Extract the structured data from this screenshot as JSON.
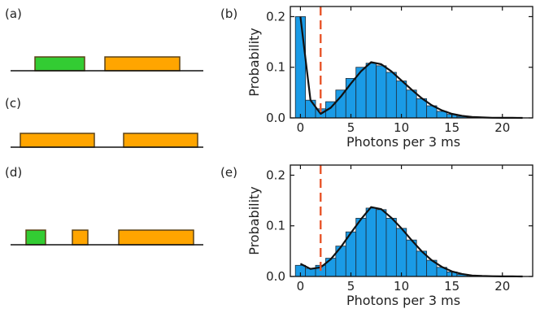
{
  "panel_labels": [
    "(a)",
    "(b)",
    "(c)",
    "(d)",
    "(e)"
  ],
  "colors": {
    "bar_fill": "#1a9be6",
    "bar_edge": "#1d2c3a",
    "fit_line": "#111111",
    "threshold_line": "#e8552a",
    "pulse_green": "#33cc33",
    "pulse_orange": "#ffa500",
    "pulse_edge": "#5c4318"
  },
  "sequences": [
    {
      "panel": "(a)",
      "pulses": [
        {
          "kind": "green",
          "start": 43,
          "end": 104,
          "height": 17
        },
        {
          "kind": "orange",
          "start": 129,
          "end": 221,
          "height": 17
        }
      ]
    },
    {
      "panel": "(c)",
      "pulses": [
        {
          "kind": "orange",
          "start": 25,
          "end": 116,
          "height": 17
        },
        {
          "kind": "orange",
          "start": 152,
          "end": 243,
          "height": 17
        }
      ]
    },
    {
      "panel": "(d)",
      "pulses": [
        {
          "kind": "green",
          "start": 32,
          "end": 56,
          "height": 18
        },
        {
          "kind": "orange",
          "start": 89,
          "end": 108,
          "height": 18
        },
        {
          "kind": "orange",
          "start": 146,
          "end": 238,
          "height": 18
        }
      ]
    }
  ],
  "chart_data": [
    {
      "panel": "(b)",
      "type": "bar",
      "xlabel": "Photons per 3 ms",
      "ylabel": "Probability",
      "xlim": [
        -1,
        23
      ],
      "ylim": [
        0,
        0.22
      ],
      "xticks": [
        0,
        5,
        10,
        15,
        20
      ],
      "yticks": [
        0.0,
        0.1,
        0.2
      ],
      "ytick_labels": [
        "0.0",
        "0.1",
        "0.2"
      ],
      "threshold": 2,
      "x": [
        0,
        1,
        2,
        3,
        4,
        5,
        6,
        7,
        8,
        9,
        10,
        11,
        12,
        13,
        14,
        15,
        16,
        17,
        18,
        19,
        20,
        21,
        22
      ],
      "values": [
        0.2,
        0.035,
        0.018,
        0.032,
        0.055,
        0.078,
        0.1,
        0.108,
        0.103,
        0.09,
        0.073,
        0.055,
        0.038,
        0.024,
        0.013,
        0.007,
        0.003,
        0.0015,
        0.0005,
        0.0002,
        0.0001,
        0,
        0
      ],
      "fit": [
        [
          0,
          0.2
        ],
        [
          1,
          0.035
        ],
        [
          2,
          0.008
        ],
        [
          3,
          0.02
        ],
        [
          4,
          0.042
        ],
        [
          5,
          0.068
        ],
        [
          6,
          0.092
        ],
        [
          7,
          0.11
        ],
        [
          8,
          0.106
        ],
        [
          9,
          0.092
        ],
        [
          10,
          0.074
        ],
        [
          11,
          0.056
        ],
        [
          12,
          0.039
        ],
        [
          13,
          0.025
        ],
        [
          14,
          0.015
        ],
        [
          15,
          0.008
        ],
        [
          16,
          0.004
        ],
        [
          17,
          0.002
        ],
        [
          18,
          0.001
        ],
        [
          19,
          0.0004
        ],
        [
          20,
          0.0002
        ],
        [
          21,
          0.0001
        ],
        [
          22,
          0
        ]
      ]
    },
    {
      "panel": "(e)",
      "type": "bar",
      "xlabel": "Photons per 3 ms",
      "ylabel": "Probability",
      "xlim": [
        -1,
        23
      ],
      "ylim": [
        0,
        0.22
      ],
      "xticks": [
        0,
        5,
        10,
        15,
        20
      ],
      "yticks": [
        0.0,
        0.1,
        0.2
      ],
      "ytick_labels": [
        "0.0",
        "0.1",
        "0.2"
      ],
      "threshold": 2,
      "x": [
        0,
        1,
        2,
        3,
        4,
        5,
        6,
        7,
        8,
        9,
        10,
        11,
        12,
        13,
        14,
        15,
        16,
        17,
        18,
        19,
        20,
        21,
        22
      ],
      "values": [
        0.022,
        0.016,
        0.022,
        0.036,
        0.06,
        0.088,
        0.115,
        0.135,
        0.132,
        0.115,
        0.095,
        0.072,
        0.05,
        0.032,
        0.018,
        0.009,
        0.004,
        0.002,
        0.001,
        0.0005,
        0.0002,
        0,
        0
      ],
      "fit": [
        [
          0,
          0.025
        ],
        [
          1,
          0.015
        ],
        [
          2,
          0.018
        ],
        [
          3,
          0.034
        ],
        [
          4,
          0.058
        ],
        [
          5,
          0.086
        ],
        [
          6,
          0.113
        ],
        [
          7,
          0.137
        ],
        [
          8,
          0.133
        ],
        [
          9,
          0.116
        ],
        [
          10,
          0.095
        ],
        [
          11,
          0.072
        ],
        [
          12,
          0.05
        ],
        [
          13,
          0.032
        ],
        [
          14,
          0.019
        ],
        [
          15,
          0.01
        ],
        [
          16,
          0.005
        ],
        [
          17,
          0.002
        ],
        [
          18,
          0.001
        ],
        [
          19,
          0.0005
        ],
        [
          20,
          0.0002
        ],
        [
          21,
          0.0001
        ],
        [
          22,
          0
        ]
      ]
    }
  ]
}
